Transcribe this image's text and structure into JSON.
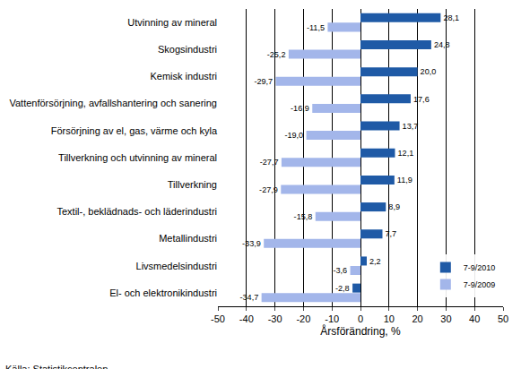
{
  "chart_data": {
    "type": "bar",
    "orientation": "horizontal",
    "categories": [
      "Utvinning av mineral",
      "Skogsindustri",
      "Kemisk industri",
      "Vattenförsörjning, avfallshantering och sanering",
      "Försörjning av el, gas, värme och kyla",
      "Tillverkning och utvinning av mineral",
      "Tillverkning",
      "Textil-, beklädnads- och läderindustri",
      "Metallindustri",
      "Livsmedelsindustri",
      "El- och elektronikindustri"
    ],
    "series": [
      {
        "name": "7-9/2010",
        "color": "#1f5aa6",
        "values": [
          28.1,
          24.8,
          20.0,
          17.6,
          13.7,
          12.1,
          11.9,
          8.9,
          7.7,
          2.2,
          -2.8
        ],
        "value_labels": [
          "28,1",
          "24,8",
          "20,0",
          "17,6",
          "13,7",
          "12,1",
          "11,9",
          "8,9",
          "7,7",
          "2,2",
          "-2,8"
        ]
      },
      {
        "name": "7-9/2009",
        "color": "#a3b6ea",
        "values": [
          -11.5,
          -25.2,
          -29.7,
          -16.9,
          -19.0,
          -27.7,
          -27.9,
          -15.8,
          -33.9,
          -3.6,
          -34.7
        ],
        "value_labels": [
          "-11,5",
          "-25,2",
          "-29,7",
          "-16,9",
          "-19,0",
          "-27,7",
          "-27,9",
          "-15,8",
          "-33,9",
          "-3,6",
          "-34,7"
        ]
      }
    ],
    "x_label": "Årsförändring, %",
    "xlim": [
      -50,
      50
    ],
    "xticks": [
      -50,
      -40,
      -30,
      -20,
      -10,
      0,
      10,
      20,
      30,
      40,
      50
    ],
    "grid": true,
    "data_labels": true,
    "legend": "lower right",
    "annotations": [
      "Källa: Statistikcentralen"
    ]
  }
}
